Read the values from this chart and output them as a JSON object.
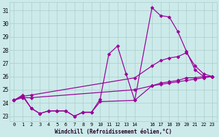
{
  "background_color": "#cceaea",
  "grid_color": "#aacccc",
  "line_color": "#990099",
  "xlabel": "Windchill (Refroidissement éolien,°C)",
  "xlim": [
    -0.5,
    23.5
  ],
  "ylim": [
    22.6,
    31.6
  ],
  "yticks": [
    23,
    24,
    25,
    26,
    27,
    28,
    29,
    30,
    31
  ],
  "xticks": [
    0,
    1,
    2,
    3,
    4,
    5,
    6,
    7,
    8,
    9,
    10,
    11,
    12,
    13,
    14,
    16,
    17,
    18,
    19,
    20,
    21,
    22,
    23
  ],
  "series": [
    {
      "x": [
        0,
        1,
        2,
        3,
        4,
        5,
        6,
        7,
        8,
        9,
        10,
        11,
        12,
        13,
        14,
        16,
        17,
        18,
        19,
        20,
        21,
        22,
        23
      ],
      "y": [
        24.2,
        24.6,
        23.6,
        23.2,
        23.4,
        23.4,
        23.4,
        23.0,
        23.3,
        23.3,
        24.3,
        27.7,
        28.3,
        26.2,
        24.2,
        31.2,
        30.6,
        30.5,
        29.4,
        27.9,
        26.5,
        26.0,
        26.0
      ]
    },
    {
      "x": [
        0,
        1,
        2,
        14,
        16,
        17,
        18,
        19,
        20,
        21,
        22,
        23
      ],
      "y": [
        24.2,
        24.5,
        24.6,
        25.9,
        26.8,
        27.2,
        27.4,
        27.5,
        27.8,
        26.8,
        26.2,
        26.0
      ]
    },
    {
      "x": [
        0,
        1,
        2,
        3,
        4,
        5,
        6,
        7,
        8,
        9,
        10,
        14,
        16,
        17,
        18,
        19,
        20,
        21,
        22,
        23
      ],
      "y": [
        24.2,
        24.5,
        23.6,
        23.2,
        23.4,
        23.4,
        23.4,
        23.0,
        23.3,
        23.3,
        24.1,
        24.2,
        25.3,
        25.5,
        25.6,
        25.7,
        25.9,
        25.9,
        26.0,
        26.0
      ]
    },
    {
      "x": [
        0,
        1,
        2,
        14,
        16,
        17,
        18,
        19,
        20,
        21,
        22,
        23
      ],
      "y": [
        24.2,
        24.4,
        24.4,
        25.0,
        25.3,
        25.4,
        25.5,
        25.6,
        25.7,
        25.8,
        25.9,
        26.0
      ]
    }
  ]
}
